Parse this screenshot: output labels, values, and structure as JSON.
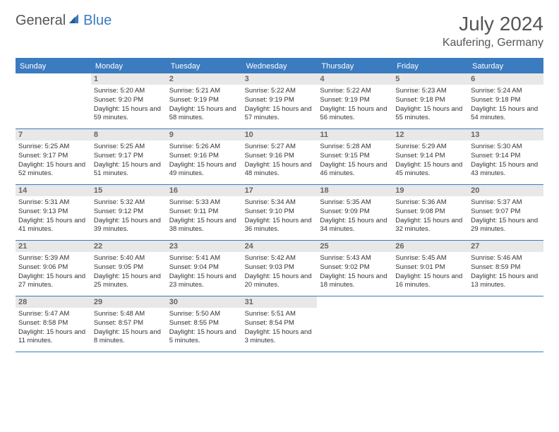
{
  "logo": {
    "text1": "General",
    "text2": "Blue"
  },
  "title": "July 2024",
  "location": "Kaufering, Germany",
  "colors": {
    "accent": "#3b7bbf",
    "daybar_bg": "#e8e8e8",
    "text": "#333333",
    "muted": "#555555",
    "bg": "#ffffff"
  },
  "weekdays": [
    "Sunday",
    "Monday",
    "Tuesday",
    "Wednesday",
    "Thursday",
    "Friday",
    "Saturday"
  ],
  "weeks": [
    [
      {
        "n": "",
        "sr": "",
        "ss": "",
        "dl": ""
      },
      {
        "n": "1",
        "sr": "5:20 AM",
        "ss": "9:20 PM",
        "dl": "15 hours and 59 minutes."
      },
      {
        "n": "2",
        "sr": "5:21 AM",
        "ss": "9:19 PM",
        "dl": "15 hours and 58 minutes."
      },
      {
        "n": "3",
        "sr": "5:22 AM",
        "ss": "9:19 PM",
        "dl": "15 hours and 57 minutes."
      },
      {
        "n": "4",
        "sr": "5:22 AM",
        "ss": "9:19 PM",
        "dl": "15 hours and 56 minutes."
      },
      {
        "n": "5",
        "sr": "5:23 AM",
        "ss": "9:18 PM",
        "dl": "15 hours and 55 minutes."
      },
      {
        "n": "6",
        "sr": "5:24 AM",
        "ss": "9:18 PM",
        "dl": "15 hours and 54 minutes."
      }
    ],
    [
      {
        "n": "7",
        "sr": "5:25 AM",
        "ss": "9:17 PM",
        "dl": "15 hours and 52 minutes."
      },
      {
        "n": "8",
        "sr": "5:25 AM",
        "ss": "9:17 PM",
        "dl": "15 hours and 51 minutes."
      },
      {
        "n": "9",
        "sr": "5:26 AM",
        "ss": "9:16 PM",
        "dl": "15 hours and 49 minutes."
      },
      {
        "n": "10",
        "sr": "5:27 AM",
        "ss": "9:16 PM",
        "dl": "15 hours and 48 minutes."
      },
      {
        "n": "11",
        "sr": "5:28 AM",
        "ss": "9:15 PM",
        "dl": "15 hours and 46 minutes."
      },
      {
        "n": "12",
        "sr": "5:29 AM",
        "ss": "9:14 PM",
        "dl": "15 hours and 45 minutes."
      },
      {
        "n": "13",
        "sr": "5:30 AM",
        "ss": "9:14 PM",
        "dl": "15 hours and 43 minutes."
      }
    ],
    [
      {
        "n": "14",
        "sr": "5:31 AM",
        "ss": "9:13 PM",
        "dl": "15 hours and 41 minutes."
      },
      {
        "n": "15",
        "sr": "5:32 AM",
        "ss": "9:12 PM",
        "dl": "15 hours and 39 minutes."
      },
      {
        "n": "16",
        "sr": "5:33 AM",
        "ss": "9:11 PM",
        "dl": "15 hours and 38 minutes."
      },
      {
        "n": "17",
        "sr": "5:34 AM",
        "ss": "9:10 PM",
        "dl": "15 hours and 36 minutes."
      },
      {
        "n": "18",
        "sr": "5:35 AM",
        "ss": "9:09 PM",
        "dl": "15 hours and 34 minutes."
      },
      {
        "n": "19",
        "sr": "5:36 AM",
        "ss": "9:08 PM",
        "dl": "15 hours and 32 minutes."
      },
      {
        "n": "20",
        "sr": "5:37 AM",
        "ss": "9:07 PM",
        "dl": "15 hours and 29 minutes."
      }
    ],
    [
      {
        "n": "21",
        "sr": "5:39 AM",
        "ss": "9:06 PM",
        "dl": "15 hours and 27 minutes."
      },
      {
        "n": "22",
        "sr": "5:40 AM",
        "ss": "9:05 PM",
        "dl": "15 hours and 25 minutes."
      },
      {
        "n": "23",
        "sr": "5:41 AM",
        "ss": "9:04 PM",
        "dl": "15 hours and 23 minutes."
      },
      {
        "n": "24",
        "sr": "5:42 AM",
        "ss": "9:03 PM",
        "dl": "15 hours and 20 minutes."
      },
      {
        "n": "25",
        "sr": "5:43 AM",
        "ss": "9:02 PM",
        "dl": "15 hours and 18 minutes."
      },
      {
        "n": "26",
        "sr": "5:45 AM",
        "ss": "9:01 PM",
        "dl": "15 hours and 16 minutes."
      },
      {
        "n": "27",
        "sr": "5:46 AM",
        "ss": "8:59 PM",
        "dl": "15 hours and 13 minutes."
      }
    ],
    [
      {
        "n": "28",
        "sr": "5:47 AM",
        "ss": "8:58 PM",
        "dl": "15 hours and 11 minutes."
      },
      {
        "n": "29",
        "sr": "5:48 AM",
        "ss": "8:57 PM",
        "dl": "15 hours and 8 minutes."
      },
      {
        "n": "30",
        "sr": "5:50 AM",
        "ss": "8:55 PM",
        "dl": "15 hours and 5 minutes."
      },
      {
        "n": "31",
        "sr": "5:51 AM",
        "ss": "8:54 PM",
        "dl": "15 hours and 3 minutes."
      },
      {
        "n": "",
        "sr": "",
        "ss": "",
        "dl": ""
      },
      {
        "n": "",
        "sr": "",
        "ss": "",
        "dl": ""
      },
      {
        "n": "",
        "sr": "",
        "ss": "",
        "dl": ""
      }
    ]
  ],
  "labels": {
    "sunrise": "Sunrise:",
    "sunset": "Sunset:",
    "daylight": "Daylight:"
  }
}
